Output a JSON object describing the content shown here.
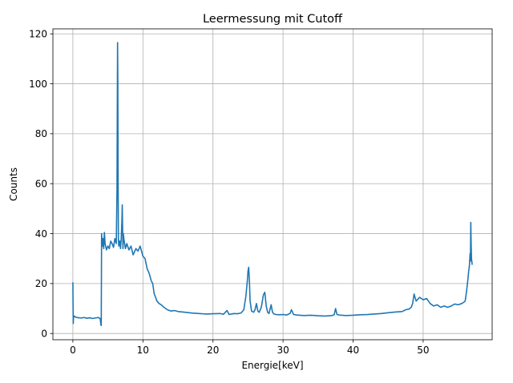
{
  "chart_data": {
    "type": "line",
    "title": "Leermessung mit Cutoff",
    "xlabel": "Energie[keV]",
    "ylabel": "Counts",
    "xlim": [
      -2.85,
      59.85
    ],
    "ylim": [
      -2.5,
      122.0
    ],
    "xticks": [
      0,
      10,
      20,
      30,
      40,
      50
    ],
    "yticks": [
      0,
      20,
      40,
      60,
      80,
      100,
      120
    ],
    "grid": true,
    "legend": "none",
    "series": [
      {
        "color": "#1f77b4",
        "x": [
          0.0,
          0.05,
          0.1,
          0.2,
          0.4,
          0.8,
          1.2,
          1.6,
          2.0,
          2.4,
          2.8,
          3.2,
          3.6,
          3.9,
          4.0,
          4.05,
          4.1,
          4.2,
          4.3,
          4.4,
          4.5,
          4.6,
          4.8,
          5.0,
          5.2,
          5.4,
          5.6,
          5.8,
          6.0,
          6.2,
          6.3,
          6.38,
          6.42,
          6.46,
          6.5,
          6.55,
          6.6,
          6.7,
          6.8,
          6.9,
          7.0,
          7.05,
          7.1,
          7.15,
          7.2,
          7.3,
          7.5,
          7.7,
          8.0,
          8.3,
          8.6,
          9.0,
          9.3,
          9.6,
          10.0,
          10.3,
          10.6,
          10.9,
          11.2,
          11.4,
          11.6,
          11.8,
          12.0,
          12.3,
          12.6,
          13.0,
          13.5,
          14.0,
          14.5,
          15.0,
          16.0,
          17.0,
          18.0,
          19.0,
          20.0,
          21.0,
          21.5,
          22.0,
          22.3,
          22.6,
          23.0,
          23.5,
          24.0,
          24.4,
          24.7,
          24.9,
          25.0,
          25.1,
          25.2,
          25.3,
          25.5,
          25.8,
          26.0,
          26.2,
          26.4,
          26.6,
          26.9,
          27.2,
          27.4,
          27.6,
          27.8,
          28.0,
          28.3,
          28.5,
          28.7,
          29.0,
          29.5,
          30.0,
          30.5,
          31.0,
          31.2,
          31.5,
          32.0,
          33.0,
          34.0,
          35.0,
          36.0,
          37.0,
          37.3,
          37.5,
          37.7,
          38.0,
          39.0,
          40.0,
          41.0,
          42.0,
          43.0,
          44.0,
          45.0,
          46.0,
          47.0,
          47.5,
          48.0,
          48.3,
          48.5,
          48.7,
          49.0,
          49.5,
          50.0,
          50.5,
          51.0,
          51.5,
          52.0,
          52.5,
          53.0,
          53.5,
          54.0,
          54.5,
          55.0,
          55.5,
          55.8,
          56.0,
          56.2,
          56.4,
          56.5,
          56.6,
          56.7,
          56.75,
          56.8,
          56.85,
          56.9,
          57.0
        ],
        "y": [
          20.5,
          4.0,
          6.5,
          7.0,
          6.5,
          6.3,
          6.2,
          6.4,
          6.1,
          6.3,
          6.0,
          6.2,
          6.4,
          6.0,
          3.5,
          3.2,
          40.0,
          35.0,
          38.0,
          34.0,
          40.5,
          36.0,
          33.5,
          35.0,
          34.0,
          37.0,
          36.0,
          34.5,
          38.0,
          36.0,
          58.0,
          116.5,
          100.0,
          60.0,
          38.0,
          35.0,
          36.5,
          37.0,
          34.0,
          38.0,
          45.0,
          51.5,
          42.0,
          34.0,
          40.0,
          37.5,
          34.0,
          36.0,
          33.5,
          35.0,
          31.5,
          34.0,
          33.0,
          35.0,
          31.0,
          30.0,
          26.0,
          24.0,
          21.0,
          20.0,
          16.0,
          14.5,
          13.0,
          12.0,
          11.5,
          10.5,
          9.5,
          9.0,
          9.2,
          8.8,
          8.5,
          8.2,
          8.0,
          7.8,
          7.9,
          8.0,
          7.7,
          9.2,
          7.6,
          7.8,
          8.0,
          7.9,
          8.2,
          9.5,
          15.0,
          21.0,
          25.0,
          26.5,
          21.0,
          13.0,
          9.0,
          8.5,
          9.5,
          12.0,
          9.0,
          8.5,
          10.5,
          15.5,
          16.5,
          11.0,
          8.5,
          8.0,
          11.5,
          8.5,
          7.8,
          7.6,
          7.5,
          7.6,
          7.4,
          8.0,
          9.5,
          7.6,
          7.4,
          7.2,
          7.3,
          7.1,
          7.0,
          7.2,
          7.5,
          10.0,
          7.6,
          7.4,
          7.2,
          7.3,
          7.5,
          7.6,
          7.8,
          8.0,
          8.3,
          8.6,
          8.8,
          9.5,
          9.8,
          10.5,
          12.0,
          15.8,
          13.0,
          14.5,
          13.5,
          14.0,
          12.0,
          11.0,
          11.5,
          10.5,
          11.0,
          10.5,
          11.0,
          11.8,
          11.5,
          12.0,
          12.5,
          13.0,
          17.0,
          22.0,
          25.0,
          27.0,
          32.0,
          29.0,
          44.5,
          36.0,
          30.0,
          27.5
        ]
      }
    ]
  }
}
